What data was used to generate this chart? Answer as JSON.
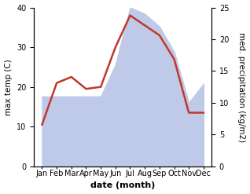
{
  "months": [
    "Jan",
    "Feb",
    "Mar",
    "Apr",
    "May",
    "Jun",
    "Jul",
    "Aug",
    "Sep",
    "Oct",
    "Nov",
    "Dec"
  ],
  "temp": [
    10.5,
    21.0,
    22.5,
    19.5,
    20.0,
    30.0,
    38.0,
    35.5,
    33.0,
    27.0,
    13.5,
    13.5
  ],
  "precip": [
    11,
    11,
    11,
    11,
    11,
    16,
    25,
    24,
    22,
    18,
    10,
    13
  ],
  "temp_color": "#c0392b",
  "precip_fill_color": "#bfc9e8",
  "bg_color": "#ffffff",
  "xlabel": "date (month)",
  "ylabel_left": "max temp (C)",
  "ylabel_right": "med. precipitation (kg/m2)",
  "ylim_left": [
    0,
    40
  ],
  "ylim_right": [
    0,
    25
  ],
  "yticks_left": [
    0,
    10,
    20,
    30,
    40
  ],
  "yticks_right": [
    0,
    5,
    10,
    15,
    20,
    25
  ],
  "temp_linewidth": 1.8,
  "xlabel_fontsize": 8,
  "ylabel_fontsize": 7.5,
  "tick_fontsize": 7
}
